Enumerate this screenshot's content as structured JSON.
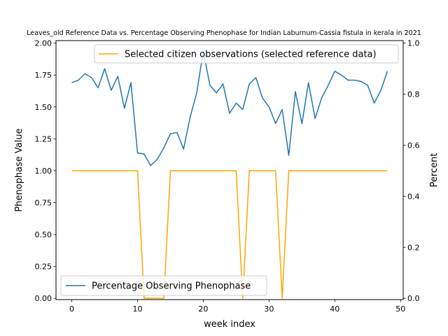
{
  "chart_data": {
    "type": "line",
    "title": "Leaves_old Reference Data vs. Percentage Observing Phenophase for Indian Laburnum-Cassia fistula in kerala in 2021",
    "xlabel": "week index",
    "ylabel_left": "Phenophase Value",
    "ylabel_right": "Percent",
    "xlim": [
      -2.4,
      50.4
    ],
    "ylim_left": [
      -0.01,
      2.02
    ],
    "ylim_right": [
      -0.005,
      1.01
    ],
    "xticks": [
      0,
      10,
      20,
      30,
      40,
      50
    ],
    "yticks_left": [
      0.0,
      0.25,
      0.5,
      0.75,
      1.0,
      1.25,
      1.5,
      1.75,
      2.0
    ],
    "yticks_right": [
      0.0,
      0.2,
      0.4,
      0.6,
      0.8,
      1.0
    ],
    "grid": false,
    "series": [
      {
        "name": "Percentage Observing Phenophase",
        "axis": "left",
        "color": "#1f77b4",
        "legend_position": "lower-left",
        "x": [
          0,
          1,
          2,
          3,
          4,
          5,
          6,
          7,
          8,
          9,
          10,
          11,
          12,
          13,
          14,
          15,
          16,
          17,
          18,
          19,
          20,
          21,
          22,
          23,
          24,
          25,
          26,
          27,
          28,
          29,
          30,
          31,
          32,
          33,
          34,
          35,
          36,
          37,
          38,
          39,
          40,
          41,
          42,
          43,
          44,
          45,
          46,
          47,
          48
        ],
        "values": [
          1.69,
          1.71,
          1.76,
          1.73,
          1.65,
          1.8,
          1.63,
          1.74,
          1.49,
          1.69,
          1.14,
          1.13,
          1.04,
          1.09,
          1.18,
          1.29,
          1.3,
          1.17,
          1.42,
          1.61,
          1.94,
          1.67,
          1.61,
          1.68,
          1.45,
          1.53,
          1.48,
          1.68,
          1.73,
          1.57,
          1.5,
          1.37,
          1.48,
          1.12,
          1.62,
          1.37,
          1.69,
          1.41,
          1.57,
          1.67,
          1.78,
          1.75,
          1.71,
          1.71,
          1.7,
          1.67,
          1.53,
          1.63,
          1.78
        ]
      },
      {
        "name": "Selected citizen observations (selected reference data)",
        "axis": "right",
        "color": "#ffa500",
        "legend_position": "upper-right",
        "x": [
          0,
          1,
          2,
          3,
          4,
          5,
          6,
          7,
          8,
          9,
          10,
          11,
          12,
          13,
          14,
          15,
          16,
          17,
          18,
          19,
          20,
          21,
          22,
          23,
          24,
          25,
          26,
          27,
          28,
          29,
          30,
          31,
          32,
          33,
          34,
          35,
          36,
          37,
          38,
          39,
          40,
          41,
          42,
          43,
          44,
          45,
          46,
          47,
          48
        ],
        "values": [
          0.5,
          0.5,
          0.5,
          0.5,
          0.5,
          0.5,
          0.5,
          0.5,
          0.5,
          0.5,
          0.5,
          0,
          0,
          0,
          0,
          0.5,
          0.5,
          0.5,
          0.5,
          0.5,
          0.5,
          0.5,
          0.5,
          0.5,
          0.5,
          0.5,
          0,
          0.5,
          0.5,
          0.5,
          0.5,
          0.5,
          0,
          0.5,
          0.5,
          0.5,
          0.5,
          0.5,
          0.5,
          0.5,
          0.5,
          0.5,
          0.5,
          0.5,
          0.5,
          0.5,
          0.5,
          0.5,
          0.5
        ]
      }
    ]
  }
}
